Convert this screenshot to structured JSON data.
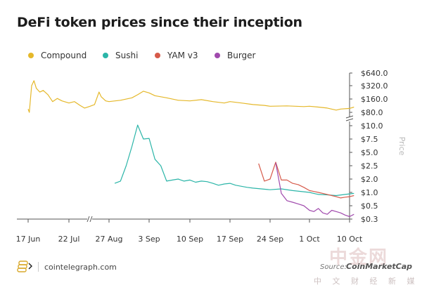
{
  "title": "DeFi token prices since their inception",
  "watermark": {
    "text": "中金网",
    "subtitle": "中 文 财 经 新 媒 体"
  },
  "footer": {
    "brand": "cointelegraph.com",
    "source": "Source:",
    "source_name": "CoinMarketCap"
  },
  "chart_data": {
    "type": "line",
    "title": "DeFi token prices since their inception",
    "ylabel": "Price",
    "yscale": "log (broken axis between $10.0 and $80.0)",
    "grid": false,
    "legend_position": "top-left",
    "x_ticks": [
      "17 Jun",
      "22 Jul",
      "27 Aug",
      "3 Sep",
      "10 Sep",
      "17 Sep",
      "24 Sep",
      "1 Oct",
      "10 Oct"
    ],
    "y_ticks": [
      "$640.0",
      "$320.0",
      "$160.0",
      "$80.0",
      "$10.0",
      "$7.5",
      "$5.0",
      "$2.5",
      "$2.0",
      "$1.0",
      "$0.5",
      "$0.3"
    ],
    "series": [
      {
        "name": "Compound",
        "color": "#e5b82a",
        "points": [
          [
            "17 Jun",
            95
          ],
          [
            "18 Jun",
            80
          ],
          [
            "19 Jun",
            160
          ],
          [
            "20 Jun",
            320
          ],
          [
            "22 Jun",
            420
          ],
          [
            "24 Jun",
            280
          ],
          [
            "27 Jun",
            230
          ],
          [
            "30 Jun",
            250
          ],
          [
            "4 Jul",
            200
          ],
          [
            "8 Jul",
            140
          ],
          [
            "12 Jul",
            165
          ],
          [
            "16 Jul",
            145
          ],
          [
            "22 Jul",
            130
          ],
          [
            "27 Jul",
            140
          ],
          [
            "1 Aug",
            115
          ],
          [
            "5 Aug",
            100
          ],
          [
            "10 Aug",
            110
          ],
          [
            "14 Aug",
            120
          ],
          [
            "18 Aug",
            230
          ],
          [
            "20 Aug",
            180
          ],
          [
            "24 Aug",
            145
          ],
          [
            "27 Aug",
            140
          ],
          [
            "29 Aug",
            150
          ],
          [
            "31 Aug",
            170
          ],
          [
            "1 Sep",
            200
          ],
          [
            "2 Sep",
            240
          ],
          [
            "3 Sep",
            220
          ],
          [
            "4 Sep",
            190
          ],
          [
            "6 Sep",
            170
          ],
          [
            "8 Sep",
            150
          ],
          [
            "10 Sep",
            145
          ],
          [
            "12 Sep",
            155
          ],
          [
            "14 Sep",
            140
          ],
          [
            "16 Sep",
            130
          ],
          [
            "17 Sep",
            140
          ],
          [
            "19 Sep",
            130
          ],
          [
            "21 Sep",
            120
          ],
          [
            "23 Sep",
            115
          ],
          [
            "24 Sep",
            110
          ],
          [
            "27 Sep",
            112
          ],
          [
            "30 Sep",
            108
          ],
          [
            "1 Oct",
            110
          ],
          [
            "3 Oct",
            105
          ],
          [
            "5 Oct",
            100
          ],
          [
            "7 Oct",
            90
          ],
          [
            "8 Oct",
            95
          ],
          [
            "10 Oct",
            98
          ],
          [
            "11 Oct",
            105
          ]
        ]
      },
      {
        "name": "Sushi",
        "color": "#2bb5a8",
        "points": [
          [
            "28 Aug",
            1.6
          ],
          [
            "29 Aug",
            1.8
          ],
          [
            "30 Aug",
            2.5
          ],
          [
            "31 Aug",
            6.0
          ],
          [
            "1 Sep",
            11.0
          ],
          [
            "2 Sep",
            7.5
          ],
          [
            "3 Sep",
            7.6
          ],
          [
            "4 Sep",
            3.5
          ],
          [
            "5 Sep",
            2.5
          ],
          [
            "6 Sep",
            1.8
          ],
          [
            "7 Sep",
            1.9
          ],
          [
            "8 Sep",
            2.0
          ],
          [
            "9 Sep",
            1.8
          ],
          [
            "10 Sep",
            1.9
          ],
          [
            "11 Sep",
            1.7
          ],
          [
            "12 Sep",
            1.8
          ],
          [
            "13 Sep",
            1.75
          ],
          [
            "14 Sep",
            1.6
          ],
          [
            "15 Sep",
            1.45
          ],
          [
            "16 Sep",
            1.55
          ],
          [
            "17 Sep",
            1.6
          ],
          [
            "18 Sep",
            1.45
          ],
          [
            "20 Sep",
            1.3
          ],
          [
            "21 Sep",
            1.25
          ],
          [
            "24 Sep",
            1.15
          ],
          [
            "26 Sep",
            1.2
          ],
          [
            "28 Sep",
            1.1
          ],
          [
            "1 Oct",
            1.0
          ],
          [
            "3 Oct",
            0.9
          ],
          [
            "5 Oct",
            0.88
          ],
          [
            "7 Oct",
            0.85
          ],
          [
            "9 Oct",
            0.9
          ],
          [
            "11 Oct",
            0.95
          ]
        ]
      },
      {
        "name": "YAM v3",
        "color": "#d65a4a",
        "points": [
          [
            "22 Sep",
            2.8
          ],
          [
            "23 Sep",
            1.8
          ],
          [
            "24 Sep",
            2.0
          ],
          [
            "25 Sep",
            3.0
          ],
          [
            "26 Sep",
            1.9
          ],
          [
            "27 Sep",
            1.9
          ],
          [
            "28 Sep",
            1.6
          ],
          [
            "29 Sep",
            1.5
          ],
          [
            "30 Sep",
            1.3
          ],
          [
            "1 Oct",
            1.1
          ],
          [
            "2 Oct",
            1.05
          ],
          [
            "3 Oct",
            1.0
          ],
          [
            "4 Oct",
            0.95
          ],
          [
            "5 Oct",
            0.9
          ],
          [
            "6 Oct",
            0.85
          ],
          [
            "7 Oct",
            0.8
          ],
          [
            "8 Oct",
            0.75
          ],
          [
            "9 Oct",
            0.78
          ],
          [
            "10 Oct",
            0.8
          ],
          [
            "11 Oct",
            0.85
          ]
        ]
      },
      {
        "name": "Burger",
        "color": "#a04aad",
        "points": [
          [
            "25 Sep",
            2.9
          ],
          [
            "26 Sep",
            0.95
          ],
          [
            "27 Sep",
            0.65
          ],
          [
            "28 Sep",
            0.6
          ],
          [
            "29 Sep",
            0.55
          ],
          [
            "30 Sep",
            0.5
          ],
          [
            "1 Oct",
            0.42
          ],
          [
            "2 Oct",
            0.4
          ],
          [
            "3 Oct",
            0.45
          ],
          [
            "4 Oct",
            0.38
          ],
          [
            "5 Oct",
            0.36
          ],
          [
            "6 Oct",
            0.42
          ],
          [
            "7 Oct",
            0.4
          ],
          [
            "8 Oct",
            0.38
          ],
          [
            "9 Oct",
            0.35
          ],
          [
            "10 Oct",
            0.33
          ],
          [
            "11 Oct",
            0.36
          ]
        ]
      }
    ]
  }
}
